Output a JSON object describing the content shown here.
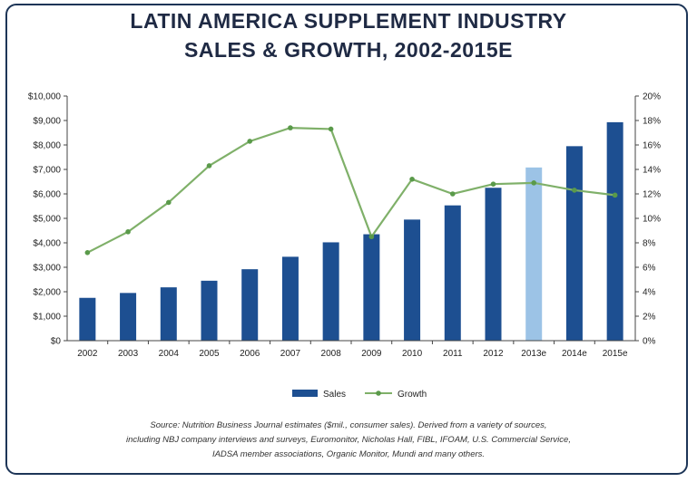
{
  "chart_data": {
    "type": "bar+line",
    "title_line1": "LATIN AMERICA SUPPLEMENT INDUSTRY",
    "title_line2": "SALES & GROWTH, 2002-2015E",
    "categories": [
      "2002",
      "2003",
      "2004",
      "2005",
      "2006",
      "2007",
      "2008",
      "2009",
      "2010",
      "2011",
      "2012",
      "2013e",
      "2014e",
      "2015e"
    ],
    "series": [
      {
        "name": "Sales",
        "type": "bar",
        "axis": "left",
        "values": [
          1750,
          1950,
          2180,
          2450,
          2920,
          3430,
          4020,
          4350,
          4950,
          5530,
          6250,
          7080,
          7950,
          8930
        ]
      },
      {
        "name": "Growth",
        "type": "line",
        "axis": "right",
        "values": [
          7.2,
          8.9,
          11.3,
          14.3,
          16.3,
          17.4,
          17.3,
          8.5,
          13.2,
          12.0,
          12.8,
          12.9,
          12.3,
          11.9
        ]
      }
    ],
    "highlight_category": "2013e",
    "y_left": {
      "min": 0,
      "max": 10000,
      "ticks": [
        "$0",
        "$1,000",
        "$2,000",
        "$3,000",
        "$4,000",
        "$5,000",
        "$6,000",
        "$7,000",
        "$8,000",
        "$9,000",
        "$10,000"
      ]
    },
    "y_right": {
      "min": 0,
      "max": 20,
      "ticks": [
        "0%",
        "2%",
        "4%",
        "6%",
        "8%",
        "10%",
        "12%",
        "14%",
        "16%",
        "18%",
        "20%"
      ]
    },
    "legend_position": "bottom-center",
    "source_lines": [
      "Source: Nutrition Business Journal estimates ($mil., consumer sales). Derived from a variety of sources,",
      "including NBJ company interviews and surveys, Euromonitor, Nicholas Hall, FIBL, IFOAM, U.S. Commercial Service,",
      "IADSA member associations, Organic Monitor, Mundi and many others."
    ],
    "colors": {
      "bar": "#1d4f91",
      "bar_highlight": "#9cc3e6",
      "line": "#7fb069",
      "line_marker": "#5a9a4a",
      "title": "#1f2a44",
      "frame": "#1d3557"
    }
  }
}
